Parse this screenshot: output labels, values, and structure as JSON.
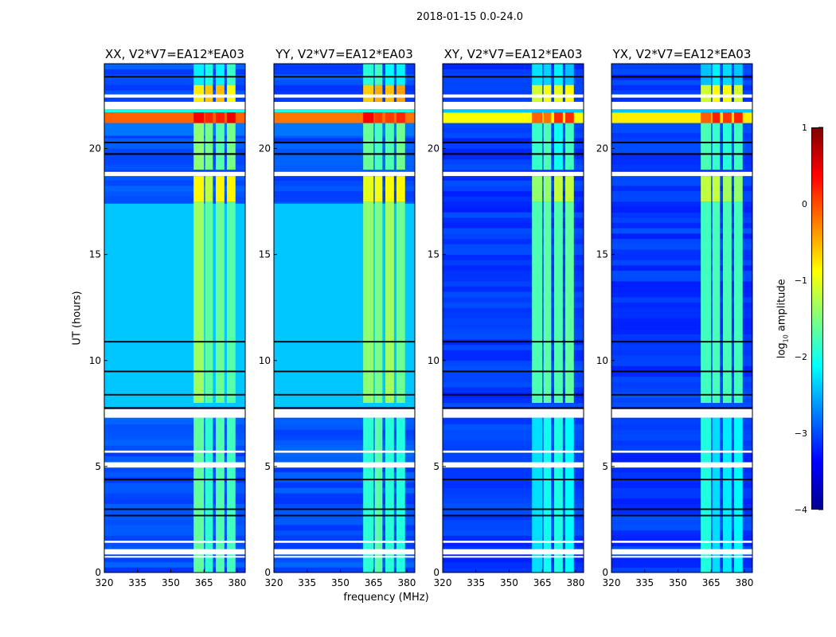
{
  "suptitle": "2018-01-15 0.0-24.0",
  "chart_data": {
    "type": "heatmap",
    "title": "2018-01-15 0.0-24.0",
    "xlabel": "frequency (MHz)",
    "ylabel": "UT (hours)",
    "colorbar_label_main": "log",
    "colorbar_label_sub": "10",
    "colorbar_label_rest": " amplitude",
    "colormap": "jet",
    "xlim": [
      320,
      383.6
    ],
    "ylim": [
      0,
      24
    ],
    "clim": [
      -4,
      1
    ],
    "xticks": [
      320,
      335,
      350,
      365,
      380
    ],
    "yticks": [
      0,
      5,
      10,
      15,
      20
    ],
    "cticks": [
      1,
      0,
      -1,
      -2,
      -3,
      -4
    ],
    "cticklabels": [
      "1",
      "0",
      "−1",
      "−2",
      "−3",
      "−4"
    ],
    "rfi_channels_mhz": [
      [
        360.3,
        365
      ],
      [
        365.5,
        369
      ],
      [
        370.3,
        374.2
      ],
      [
        375.3,
        379.2
      ]
    ],
    "flagged_rows_hours": [
      [
        22.4,
        22.55
      ],
      [
        21.85,
        22.2
      ],
      [
        18.7,
        18.9
      ],
      [
        7.3,
        7.7
      ],
      [
        5.65,
        5.75
      ],
      [
        4.95,
        5.2
      ],
      [
        0.85,
        1.1
      ],
      [
        1.4,
        1.5
      ],
      [
        0.7,
        0.78
      ]
    ],
    "dropout_rows_hours": [
      [
        23.35,
        23.42
      ],
      [
        20.25,
        20.32
      ],
      [
        19.7,
        19.78
      ],
      [
        10.85,
        10.92
      ],
      [
        9.45,
        9.52
      ],
      [
        8.35,
        8.42
      ],
      [
        4.35,
        4.42
      ],
      [
        2.95,
        3.02
      ],
      [
        2.65,
        2.72
      ],
      [
        7.75,
        7.8
      ]
    ],
    "panels": [
      {
        "title": "XX, V2*V7=EA12*EA03",
        "background": -3.0,
        "bands": [
          [
            7.8,
            17.4,
            -2.4
          ],
          [
            20.6,
            21.2,
            -2.8
          ],
          [
            21.2,
            21.7,
            -0.1
          ],
          [
            21.7,
            21.85,
            -2.0
          ]
        ],
        "rfi": [
          [
            0,
            7.3,
            -1.8
          ],
          [
            8,
            17.5,
            -1.5
          ],
          [
            17.5,
            18.7,
            -1.0
          ],
          [
            19,
            21.2,
            -1.6
          ],
          [
            21.2,
            21.7,
            0.3
          ],
          [
            22.2,
            23,
            -0.7
          ],
          [
            23,
            24,
            -2.0
          ]
        ]
      },
      {
        "title": "YY, V2*V7=EA12*EA03",
        "background": -3.0,
        "bands": [
          [
            7.8,
            17.4,
            -2.4
          ],
          [
            20.6,
            21.2,
            -2.8
          ],
          [
            21.2,
            21.7,
            -0.2
          ],
          [
            21.7,
            21.85,
            -2.0
          ]
        ],
        "rfi": [
          [
            0,
            7.3,
            -1.8
          ],
          [
            8,
            17.5,
            -1.5
          ],
          [
            17.5,
            18.7,
            -0.9
          ],
          [
            19,
            21.2,
            -1.6
          ],
          [
            21.2,
            21.7,
            0.2
          ],
          [
            22.2,
            23,
            -0.6
          ],
          [
            23,
            24,
            -2.0
          ]
        ]
      },
      {
        "title": "XY, V2*V7=EA12*EA03",
        "background": -3.1,
        "bands": [
          [
            21.2,
            21.7,
            -0.9
          ],
          [
            21.7,
            21.85,
            -2.4
          ]
        ],
        "rfi": [
          [
            0,
            7.3,
            -2.1
          ],
          [
            8,
            17.5,
            -1.8
          ],
          [
            17.5,
            18.7,
            -1.3
          ],
          [
            19,
            21.2,
            -1.9
          ],
          [
            21.2,
            21.7,
            0.0
          ],
          [
            22.2,
            23,
            -1.0
          ],
          [
            23,
            24,
            -2.3
          ]
        ]
      },
      {
        "title": "YX, V2*V7=EA12*EA03",
        "background": -3.1,
        "bands": [
          [
            21.2,
            21.7,
            -0.8
          ],
          [
            21.7,
            21.85,
            -2.4
          ]
        ],
        "rfi": [
          [
            0,
            7.3,
            -2.1
          ],
          [
            8,
            17.5,
            -1.8
          ],
          [
            17.5,
            18.7,
            -1.3
          ],
          [
            19,
            21.2,
            -1.9
          ],
          [
            21.2,
            21.7,
            0.1
          ],
          [
            22.2,
            23,
            -1.0
          ],
          [
            23,
            24,
            -2.3
          ]
        ]
      }
    ]
  }
}
